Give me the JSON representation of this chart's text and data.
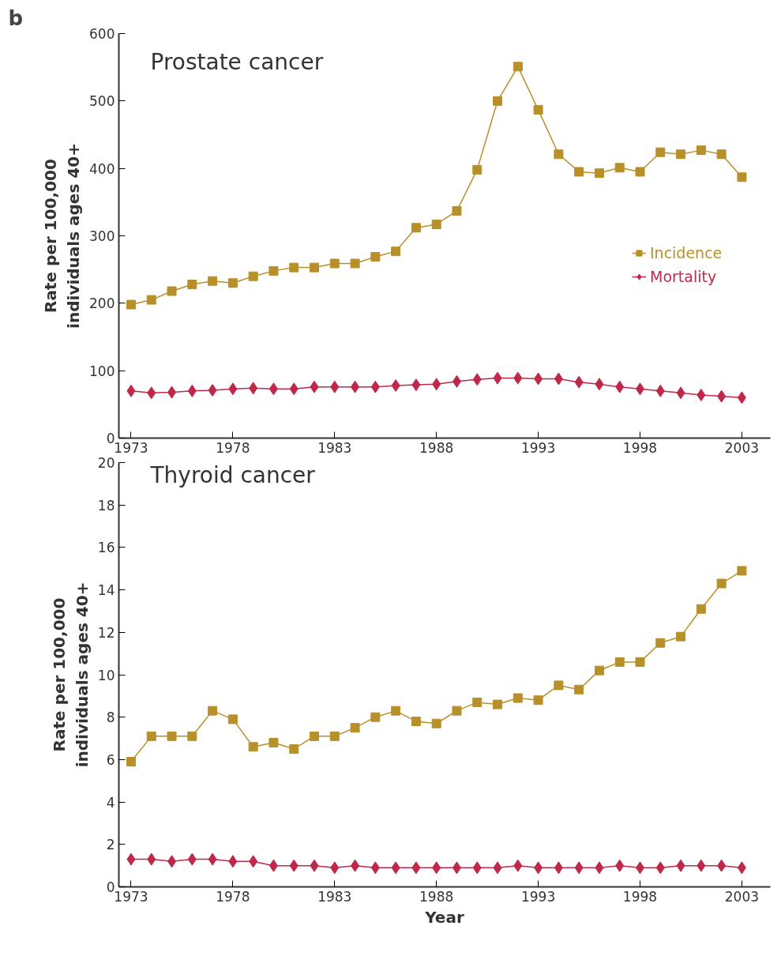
{
  "chart_data": [
    {
      "type": "line",
      "title": "Prostate cancer",
      "annotations": [
        "b"
      ],
      "ylabel": "Rate per 100,000\nindividuals ages 40+",
      "x": [
        1973,
        1974,
        1975,
        1976,
        1977,
        1978,
        1979,
        1980,
        1981,
        1982,
        1983,
        1984,
        1985,
        1986,
        1987,
        1988,
        1989,
        1990,
        1991,
        1992,
        1993,
        1994,
        1995,
        1996,
        1997,
        1998,
        1999,
        2000,
        2001,
        2002,
        2003
      ],
      "xlim": [
        1972.4,
        2004.4
      ],
      "xticks": [
        1973,
        1978,
        1983,
        1988,
        1993,
        1998,
        2003
      ],
      "ylim": [
        0,
        600
      ],
      "yticks": [
        0,
        100,
        200,
        300,
        400,
        500,
        600
      ],
      "grid": false,
      "legend": "right",
      "series": [
        {
          "name": "Incidence",
          "color": "#b8902a",
          "marker": "square",
          "values": [
            198,
            205,
            218,
            228,
            233,
            230,
            240,
            248,
            253,
            253,
            259,
            259,
            269,
            277,
            312,
            317,
            337,
            398,
            500,
            551,
            487,
            421,
            395,
            393,
            401,
            395,
            424,
            421,
            427,
            421,
            387
          ]
        },
        {
          "name": "Mortality",
          "color": "#c0284a",
          "marker": "diamond",
          "values": [
            70,
            67,
            68,
            70,
            71,
            73,
            74,
            73,
            73,
            76,
            76,
            76,
            76,
            78,
            79,
            80,
            84,
            87,
            89,
            89,
            88,
            88,
            83,
            80,
            76,
            73,
            70,
            67,
            64,
            62,
            60
          ]
        }
      ]
    },
    {
      "type": "line",
      "title": "Thyroid cancer",
      "xlabel": "Year",
      "ylabel": "Rate per 100,000\nindividuals ages 40+",
      "x": [
        1973,
        1974,
        1975,
        1976,
        1977,
        1978,
        1979,
        1980,
        1981,
        1982,
        1983,
        1984,
        1985,
        1986,
        1987,
        1988,
        1989,
        1990,
        1991,
        1992,
        1993,
        1994,
        1995,
        1996,
        1997,
        1998,
        1999,
        2000,
        2001,
        2002,
        2003
      ],
      "xlim": [
        1972.4,
        2004.4
      ],
      "xticks": [
        1973,
        1978,
        1983,
        1988,
        1993,
        1998,
        2003
      ],
      "ylim": [
        0,
        20
      ],
      "yticks": [
        0,
        2,
        4,
        6,
        8,
        10,
        12,
        14,
        16,
        18,
        20
      ],
      "grid": false,
      "series": [
        {
          "color": "#b8902a",
          "marker": "square",
          "values": [
            5.9,
            7.1,
            7.1,
            7.1,
            8.3,
            7.9,
            6.6,
            6.8,
            6.5,
            7.1,
            7.1,
            7.5,
            8.0,
            8.3,
            7.8,
            7.7,
            8.3,
            8.7,
            8.6,
            8.9,
            8.8,
            9.5,
            9.3,
            10.2,
            10.6,
            10.6,
            11.5,
            11.8,
            13.1,
            14.3,
            14.9
          ]
        },
        {
          "color": "#c0284a",
          "marker": "diamond",
          "values": [
            1.3,
            1.3,
            1.2,
            1.3,
            1.3,
            1.2,
            1.2,
            1.0,
            1.0,
            1.0,
            0.9,
            1.0,
            0.9,
            0.9,
            0.9,
            0.9,
            0.9,
            0.9,
            0.9,
            1.0,
            0.9,
            0.9,
            0.9,
            0.9,
            1.0,
            0.9,
            0.9,
            1.0,
            1.0,
            1.0,
            0.9
          ]
        }
      ]
    }
  ]
}
